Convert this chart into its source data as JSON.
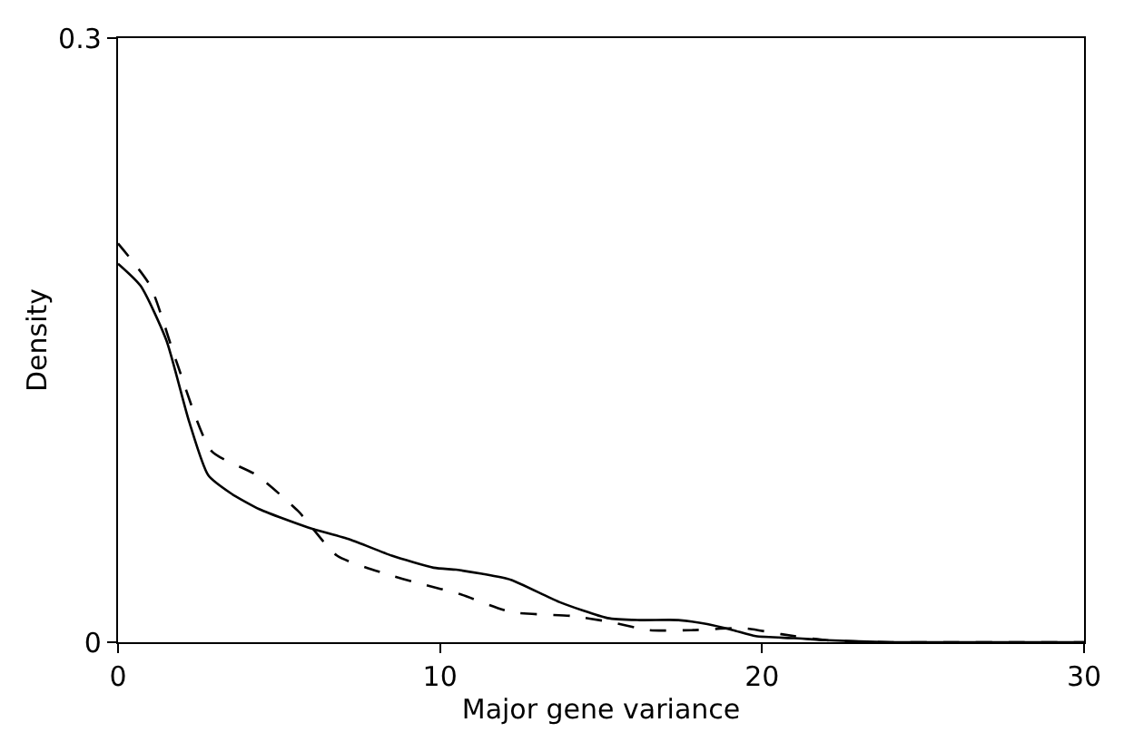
{
  "chart_data": {
    "type": "line",
    "xlabel": "Major gene variance",
    "ylabel": "Density",
    "xlim": [
      0,
      30
    ],
    "xticks": [
      0,
      10,
      20,
      30
    ],
    "ylim": [
      0,
      0.3
    ],
    "yticks": [
      0,
      0.3
    ],
    "marker": "none",
    "series": [
      {
        "color": "#000000",
        "line_style": "solid",
        "x": [
          0,
          0.7,
          1.5,
          2.2,
          2.8,
          3.5,
          4.4,
          5.9,
          7.2,
          8.5,
          9.8,
          10.5,
          11.3,
          12.2,
          13.7,
          15.2,
          16.2,
          17.4,
          18.3,
          19.1,
          19.8,
          21,
          22,
          24,
          26,
          28,
          30
        ],
        "values": [
          0.188,
          0.177,
          0.15,
          0.11,
          0.083,
          0.074,
          0.066,
          0.057,
          0.051,
          0.043,
          0.037,
          0.036,
          0.034,
          0.031,
          0.02,
          0.012,
          0.011,
          0.011,
          0.009,
          0.006,
          0.003,
          0.002,
          0.001,
          0,
          0,
          0,
          0
        ]
      },
      {
        "color": "#000000",
        "line_style": "dashed",
        "x": [
          0,
          1.0,
          1.8,
          2.9,
          4.3,
          5.6,
          6.8,
          8.3,
          9.4,
          10.6,
          12.2,
          14.1,
          15.3,
          16.5,
          17.8,
          19.4,
          20.6,
          22,
          24,
          26,
          28,
          30
        ],
        "values": [
          0.198,
          0.177,
          0.14,
          0.095,
          0.083,
          0.065,
          0.043,
          0.034,
          0.029,
          0.024,
          0.015,
          0.013,
          0.01,
          0.006,
          0.006,
          0.007,
          0.004,
          0.001,
          0,
          0,
          0,
          0
        ]
      }
    ]
  }
}
